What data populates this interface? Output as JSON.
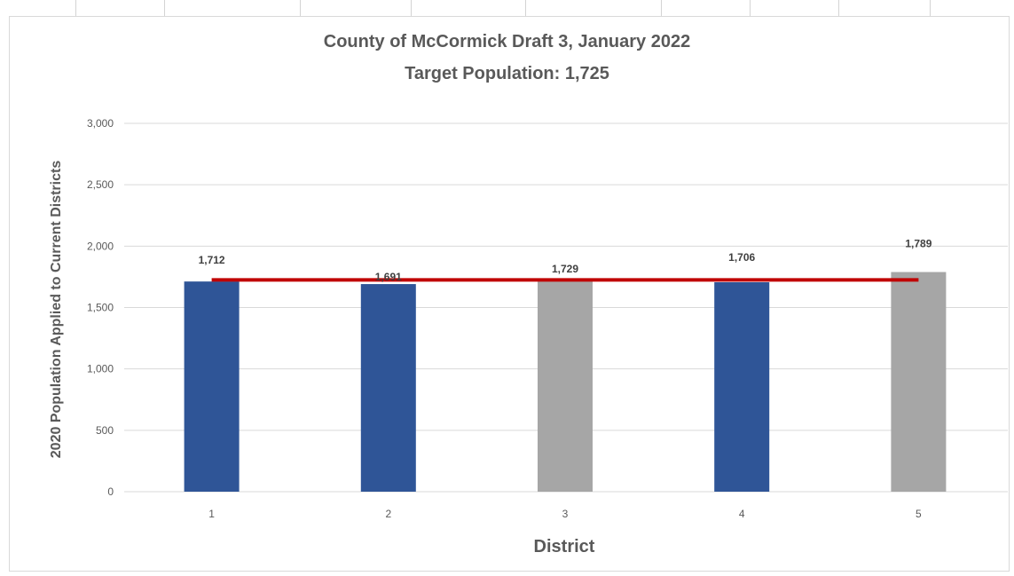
{
  "chart_data": {
    "type": "bar",
    "title": "County of McCormick Draft 3, January 2022",
    "subtitle": "Target Population: 1,725",
    "xlabel": "District",
    "ylabel": "2020 Population Applied to Current Districts",
    "categories": [
      "1",
      "2",
      "3",
      "4",
      "5"
    ],
    "values": [
      1712,
      1691,
      1729,
      1706,
      1789
    ],
    "data_labels": [
      "1,712",
      "1,691",
      "1,729",
      "1,706",
      "1,789"
    ],
    "bar_colors": [
      "#2f5597",
      "#2f5597",
      "#a6a6a6",
      "#2f5597",
      "#a6a6a6"
    ],
    "target_line": {
      "value": 1725,
      "color": "#c00000"
    },
    "ylim": [
      0,
      3000
    ],
    "yticks": [
      0,
      500,
      1000,
      1500,
      2000,
      2500,
      3000
    ],
    "ytick_labels": [
      "0",
      "500",
      "1,000",
      "1,500",
      "2,000",
      "2,500",
      "3,000"
    ],
    "grid": true,
    "legend": "none"
  }
}
